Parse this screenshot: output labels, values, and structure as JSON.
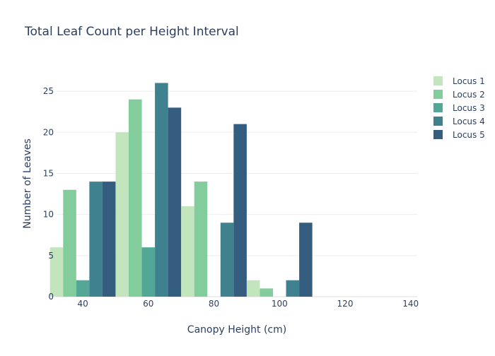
{
  "chart_data": {
    "type": "bar",
    "title": "Total Leaf Count per Height Interval",
    "xlabel": "Canopy Height (cm)",
    "ylabel": "Number of Leaves",
    "x_ticks": [
      40,
      60,
      80,
      100,
      120,
      140
    ],
    "y_ticks": [
      0,
      5,
      10,
      15,
      20,
      25
    ],
    "xlim": [
      32,
      142
    ],
    "ylim": [
      0,
      27.5
    ],
    "bin_width": 20,
    "bin_centers": [
      40,
      60,
      80,
      100
    ],
    "series": [
      {
        "name": "Locus 1",
        "color": "#c2e5be",
        "values": [
          6,
          20,
          11,
          2
        ]
      },
      {
        "name": "Locus 2",
        "color": "#83cc9c",
        "values": [
          13,
          24,
          14,
          1
        ]
      },
      {
        "name": "Locus 3",
        "color": "#52a797",
        "values": [
          2,
          6,
          0,
          0
        ]
      },
      {
        "name": "Locus 4",
        "color": "#3f818f",
        "values": [
          14,
          26,
          9,
          2
        ]
      },
      {
        "name": "Locus 5",
        "color": "#345d80",
        "values": [
          14,
          23,
          21,
          9
        ]
      }
    ],
    "legend_position": "right",
    "grid": true
  }
}
